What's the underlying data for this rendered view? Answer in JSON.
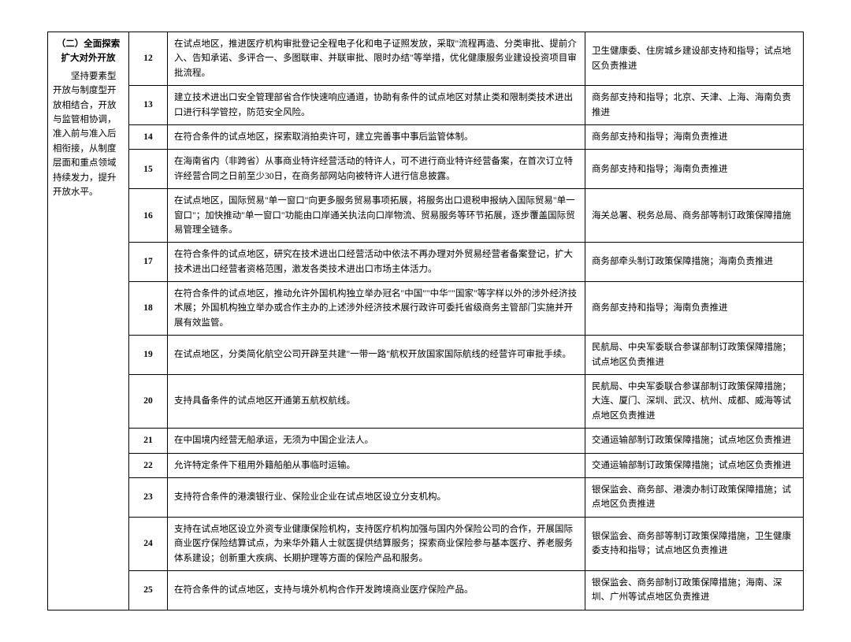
{
  "section": {
    "title": "（二）全面探索扩大对外开放",
    "body": "坚持要素型开放与制度型开放相结合，开放与监管相协调，准入前与准入后相衔接，从制度层面和重点领域持续发力，提升开放水平。"
  },
  "rows": [
    {
      "n": "12",
      "content": "在试点地区，推进医疗机构审批登记全程电子化和电子证照发放，采取\"流程再造、分类审批、提前介入、告知承诺、多评合一、多图联审、并联审批、限时办结\"等举措，优化健康服务业建设投资项目审批流程。",
      "dept": "卫生健康委、住房城乡建设部支持和指导；试点地区负责推进"
    },
    {
      "n": "13",
      "content": "建立技术进出口安全管理部省合作快速响应通道，协助有条件的试点地区对禁止类和限制类技术进出口进行科学管控，防范安全风险。",
      "dept": "商务部支持和指导；北京、天津、上海、海南负责推进"
    },
    {
      "n": "14",
      "content": "在符合条件的试点地区，探索取消拍卖许可，建立完善事中事后监管体制。",
      "dept": "商务部支持和指导；海南负责推进"
    },
    {
      "n": "15",
      "content": "在海南省内（非跨省）从事商业特许经营活动的特许人，可不进行商业特许经营备案，在首次订立特许经营合同之日前至少30日，在商务部网站向被特许人进行信息披露。",
      "dept": "商务部支持和指导；海南负责推进"
    },
    {
      "n": "16",
      "content": "在试点地区，国际贸易\"单一窗口\"向更多服务贸易事项拓展，将服务出口退税申报纳入国际贸易\"单一窗口\"；加快推动\"单一窗口\"功能由口岸通关执法向口岸物流、贸易服务等环节拓展，逐步覆盖国际贸易管理全链条。",
      "dept": "海关总署、税务总局、商务部等制订政策保障措施"
    },
    {
      "n": "17",
      "content": "在符合条件的试点地区，研究在技术进出口经营活动中依法不再办理对外贸易经营者备案登记，扩大技术进出口经营者资格范围，激发各类技术进出口市场主体活力。",
      "dept": "商务部牵头制订政策保障措施；海南负责推进"
    },
    {
      "n": "18",
      "content": "在符合条件的试点地区，推动允许外国机构独立举办冠名\"中国\"\"中华\"\"国家\"等字样以外的涉外经济技术展；外国机构独立举办或合作主办的上述涉外经济技术展行政许可委托省级商务主管部门实施并开展有效监管。",
      "dept": "商务部支持和指导；海南负责推进"
    },
    {
      "n": "19",
      "content": "在试点地区，分类简化航空公司开辟至共建\"一带一路\"航权开放国家国际航线的经营许可审批手续。",
      "dept": "民航局、中央军委联合参谋部制订政策保障措施；试点地区负责推进"
    },
    {
      "n": "20",
      "content": "支持具备条件的试点地区开通第五航权航线。",
      "dept": "民航局、中央军委联合参谋部制订政策保障措施；大连、厦门、深圳、武汉、杭州、成都、威海等试点地区负责推进"
    },
    {
      "n": "21",
      "content": "在中国境内经营无船承运，无须为中国企业法人。",
      "dept": "交通运输部制订政策保障措施；试点地区负责推进"
    },
    {
      "n": "22",
      "content": "允许特定条件下租用外籍船舶从事临时运输。",
      "dept": "交通运输部制订政策保障措施；试点地区负责推进"
    },
    {
      "n": "23",
      "content": "支持符合条件的港澳银行业、保险业企业在试点地区设立分支机构。",
      "dept": "银保监会、商务部、港澳办制订政策保障措施；试点地区负责推进"
    },
    {
      "n": "24",
      "content": "支持在试点地区设立外资专业健康保险机构，支持医疗机构加强与国内外保险公司的合作，开展国际商业医疗保险结算试点，为来华外籍人士就医提供结算服务；探索商业保险参与基本医疗、养老服务体系建设；创新重大疾病、长期护理等方面的保险产品和服务。",
      "dept": "银保监会、商务部等制订政策保障措施，卫生健康委支持和指导；试点地区负责推进"
    },
    {
      "n": "25",
      "content": "在符合条件的试点地区，支持与境外机构合作开发跨境商业医疗保险产品。",
      "dept": "银保监会、商务部制订政策保障措施；海南、深圳、广州等试点地区负责推进"
    }
  ]
}
